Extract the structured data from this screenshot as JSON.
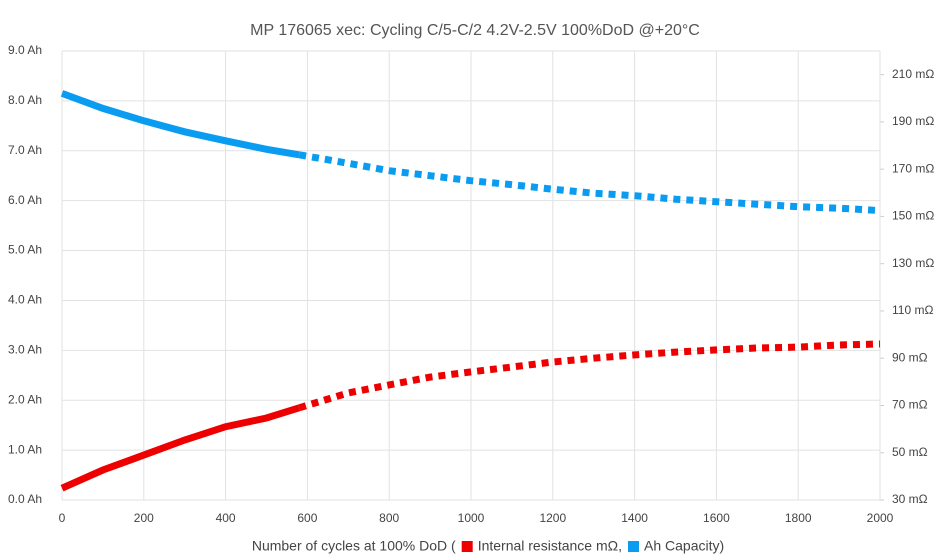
{
  "chart_data": {
    "type": "line",
    "title": "MP 176065 xec: Cycling C/5-C/2 4.2V-2.5V 100%DoD @+20°C",
    "x_label": "Number of cycles  at 100% DoD (",
    "x": [
      0,
      100,
      200,
      300,
      400,
      500,
      580,
      700,
      800,
      900,
      1000,
      1100,
      1200,
      1300,
      1400,
      1500,
      1600,
      1700,
      1800,
      1900,
      2000
    ],
    "dashed_from_x": 580,
    "series": [
      {
        "name": "Internal resistance mΩ,",
        "color": "#ee0000",
        "axis": "y2",
        "values": [
          35,
          42.7,
          49,
          55.4,
          61,
          64.7,
          69,
          75.3,
          78.7,
          82,
          84.2,
          86.3,
          88.4,
          90,
          91.4,
          92.6,
          93.5,
          94.3,
          94.7,
          95.6,
          96
        ]
      },
      {
        "name": "Ah Capacity)",
        "color": "#0a9cf0",
        "values": [
          8.15,
          7.85,
          7.6,
          7.38,
          7.2,
          7.03,
          6.92,
          6.75,
          6.6,
          6.5,
          6.4,
          6.32,
          6.23,
          6.15,
          6.1,
          6.03,
          5.98,
          5.93,
          5.88,
          5.85,
          5.8
        ]
      }
    ],
    "xlim": [
      0,
      2000
    ],
    "xticks": [
      0,
      200,
      400,
      600,
      800,
      1000,
      1200,
      1400,
      1600,
      1800,
      2000
    ],
    "ylim": [
      0,
      9
    ],
    "yticks": [
      {
        "value": 0,
        "label": "0.0 Ah"
      },
      {
        "value": 1,
        "label": "1.0 Ah"
      },
      {
        "value": 2,
        "label": "2.0 Ah"
      },
      {
        "value": 3,
        "label": "3.0 Ah"
      },
      {
        "value": 4,
        "label": "4.0 Ah"
      },
      {
        "value": 5,
        "label": "5.0 Ah"
      },
      {
        "value": 6,
        "label": "6.0 Ah"
      },
      {
        "value": 7,
        "label": "7.0 Ah"
      },
      {
        "value": 8,
        "label": "8.0 Ah"
      },
      {
        "value": 9,
        "label": "9.0 Ah"
      }
    ],
    "y2lim": [
      30,
      220
    ],
    "y2ticks": [
      {
        "value": 30,
        "label": "30 mΩ"
      },
      {
        "value": 50,
        "label": "50 mΩ"
      },
      {
        "value": 70,
        "label": "70 mΩ"
      },
      {
        "value": 90,
        "label": "90 mΩ"
      },
      {
        "value": 110,
        "label": "110 mΩ"
      },
      {
        "value": 130,
        "label": "130 mΩ"
      },
      {
        "value": 150,
        "label": "150 mΩ"
      },
      {
        "value": 170,
        "label": "170 mΩ"
      },
      {
        "value": 190,
        "label": "190 mΩ"
      },
      {
        "value": 210,
        "label": "210 mΩ"
      }
    ],
    "grid": true
  }
}
